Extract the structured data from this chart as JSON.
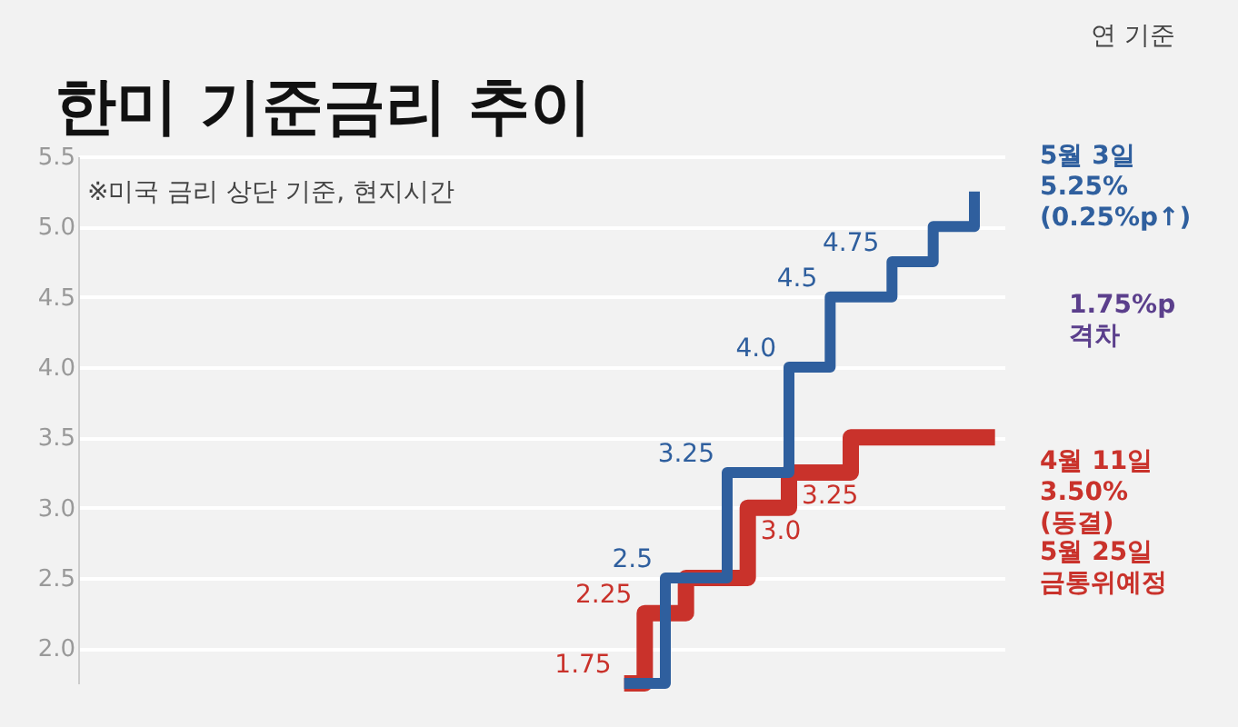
{
  "chart_data": {
    "type": "step",
    "title": "한미 기준금리 추이",
    "categories": [
      null,
      null,
      null,
      null,
      null,
      null,
      null,
      null,
      null,
      null,
      null,
      null,
      null,
      null,
      null,
      null,
      null,
      null,
      null,
      null,
      null,
      null,
      null,
      null,
      null,
      null,
      null,
      null,
      null,
      null,
      null,
      null,
      null,
      null,
      null,
      null,
      null,
      null,
      null,
      null,
      null,
      null,
      null,
      null,
      null
    ],
    "series": [
      {
        "color": "#2f5f9e",
        "values": [
          null,
          null,
          null,
          null,
          null,
          null,
          null,
          null,
          null,
          null,
          null,
          null,
          null,
          null,
          null,
          null,
          null,
          null,
          null,
          null,
          null,
          null,
          null,
          null,
          null,
          null,
          1.75,
          1.75,
          2.5,
          2.5,
          2.5,
          3.25,
          3.25,
          3.25,
          4.0,
          4.0,
          4.5,
          4.5,
          4.5,
          4.75,
          4.75,
          5.0,
          5.0,
          5.25,
          null
        ],
        "value_labels": [
          null,
          null,
          null,
          null,
          null,
          null,
          null,
          null,
          null,
          null,
          null,
          null,
          null,
          null,
          null,
          null,
          null,
          null,
          null,
          null,
          null,
          null,
          null,
          null,
          null,
          null,
          null,
          null,
          "2.5",
          null,
          null,
          "3.25",
          null,
          null,
          "4.0",
          null,
          "4.5",
          null,
          null,
          "4.75",
          null,
          null,
          null,
          null,
          null
        ]
      },
      {
        "color": "#c9322b",
        "values": [
          null,
          null,
          null,
          null,
          null,
          null,
          null,
          null,
          null,
          null,
          null,
          null,
          null,
          null,
          null,
          null,
          null,
          null,
          null,
          null,
          null,
          null,
          null,
          null,
          null,
          null,
          1.75,
          2.25,
          2.25,
          2.5,
          2.5,
          2.5,
          3.0,
          3.0,
          3.25,
          3.25,
          3.25,
          3.5,
          3.5,
          3.5,
          3.5,
          3.5,
          3.5,
          3.5,
          3.5
        ],
        "value_labels": [
          null,
          null,
          null,
          null,
          null,
          null,
          null,
          null,
          null,
          null,
          null,
          null,
          null,
          null,
          null,
          null,
          null,
          null,
          null,
          null,
          null,
          null,
          null,
          null,
          null,
          null,
          "1.75",
          "2.25",
          null,
          null,
          null,
          null,
          "3.0",
          null,
          "3.25",
          null,
          null,
          null,
          null,
          null,
          null,
          null,
          null,
          null,
          null
        ]
      }
    ],
    "ylim": [
      1.75,
      5.5
    ],
    "yticks": [
      {
        "value": 2,
        "label": "2.0"
      },
      2.5,
      {
        "value": 3,
        "label": "3.0"
      },
      3.5,
      {
        "value": 4,
        "label": "4.0"
      },
      4.5,
      {
        "value": 5,
        "label": "5.0"
      },
      5.5
    ],
    "grid": "y",
    "tick_labels": "y",
    "annotations": [
      "연 기준",
      "※미국 금리 상단 기준, 현지시간",
      "5월 3일\n5.25%\n(0.25%p↑)",
      "1.75%p\n격차",
      "4월 11일\n3.50%\n(동결)\n5월 25일\n금통위예정"
    ]
  }
}
